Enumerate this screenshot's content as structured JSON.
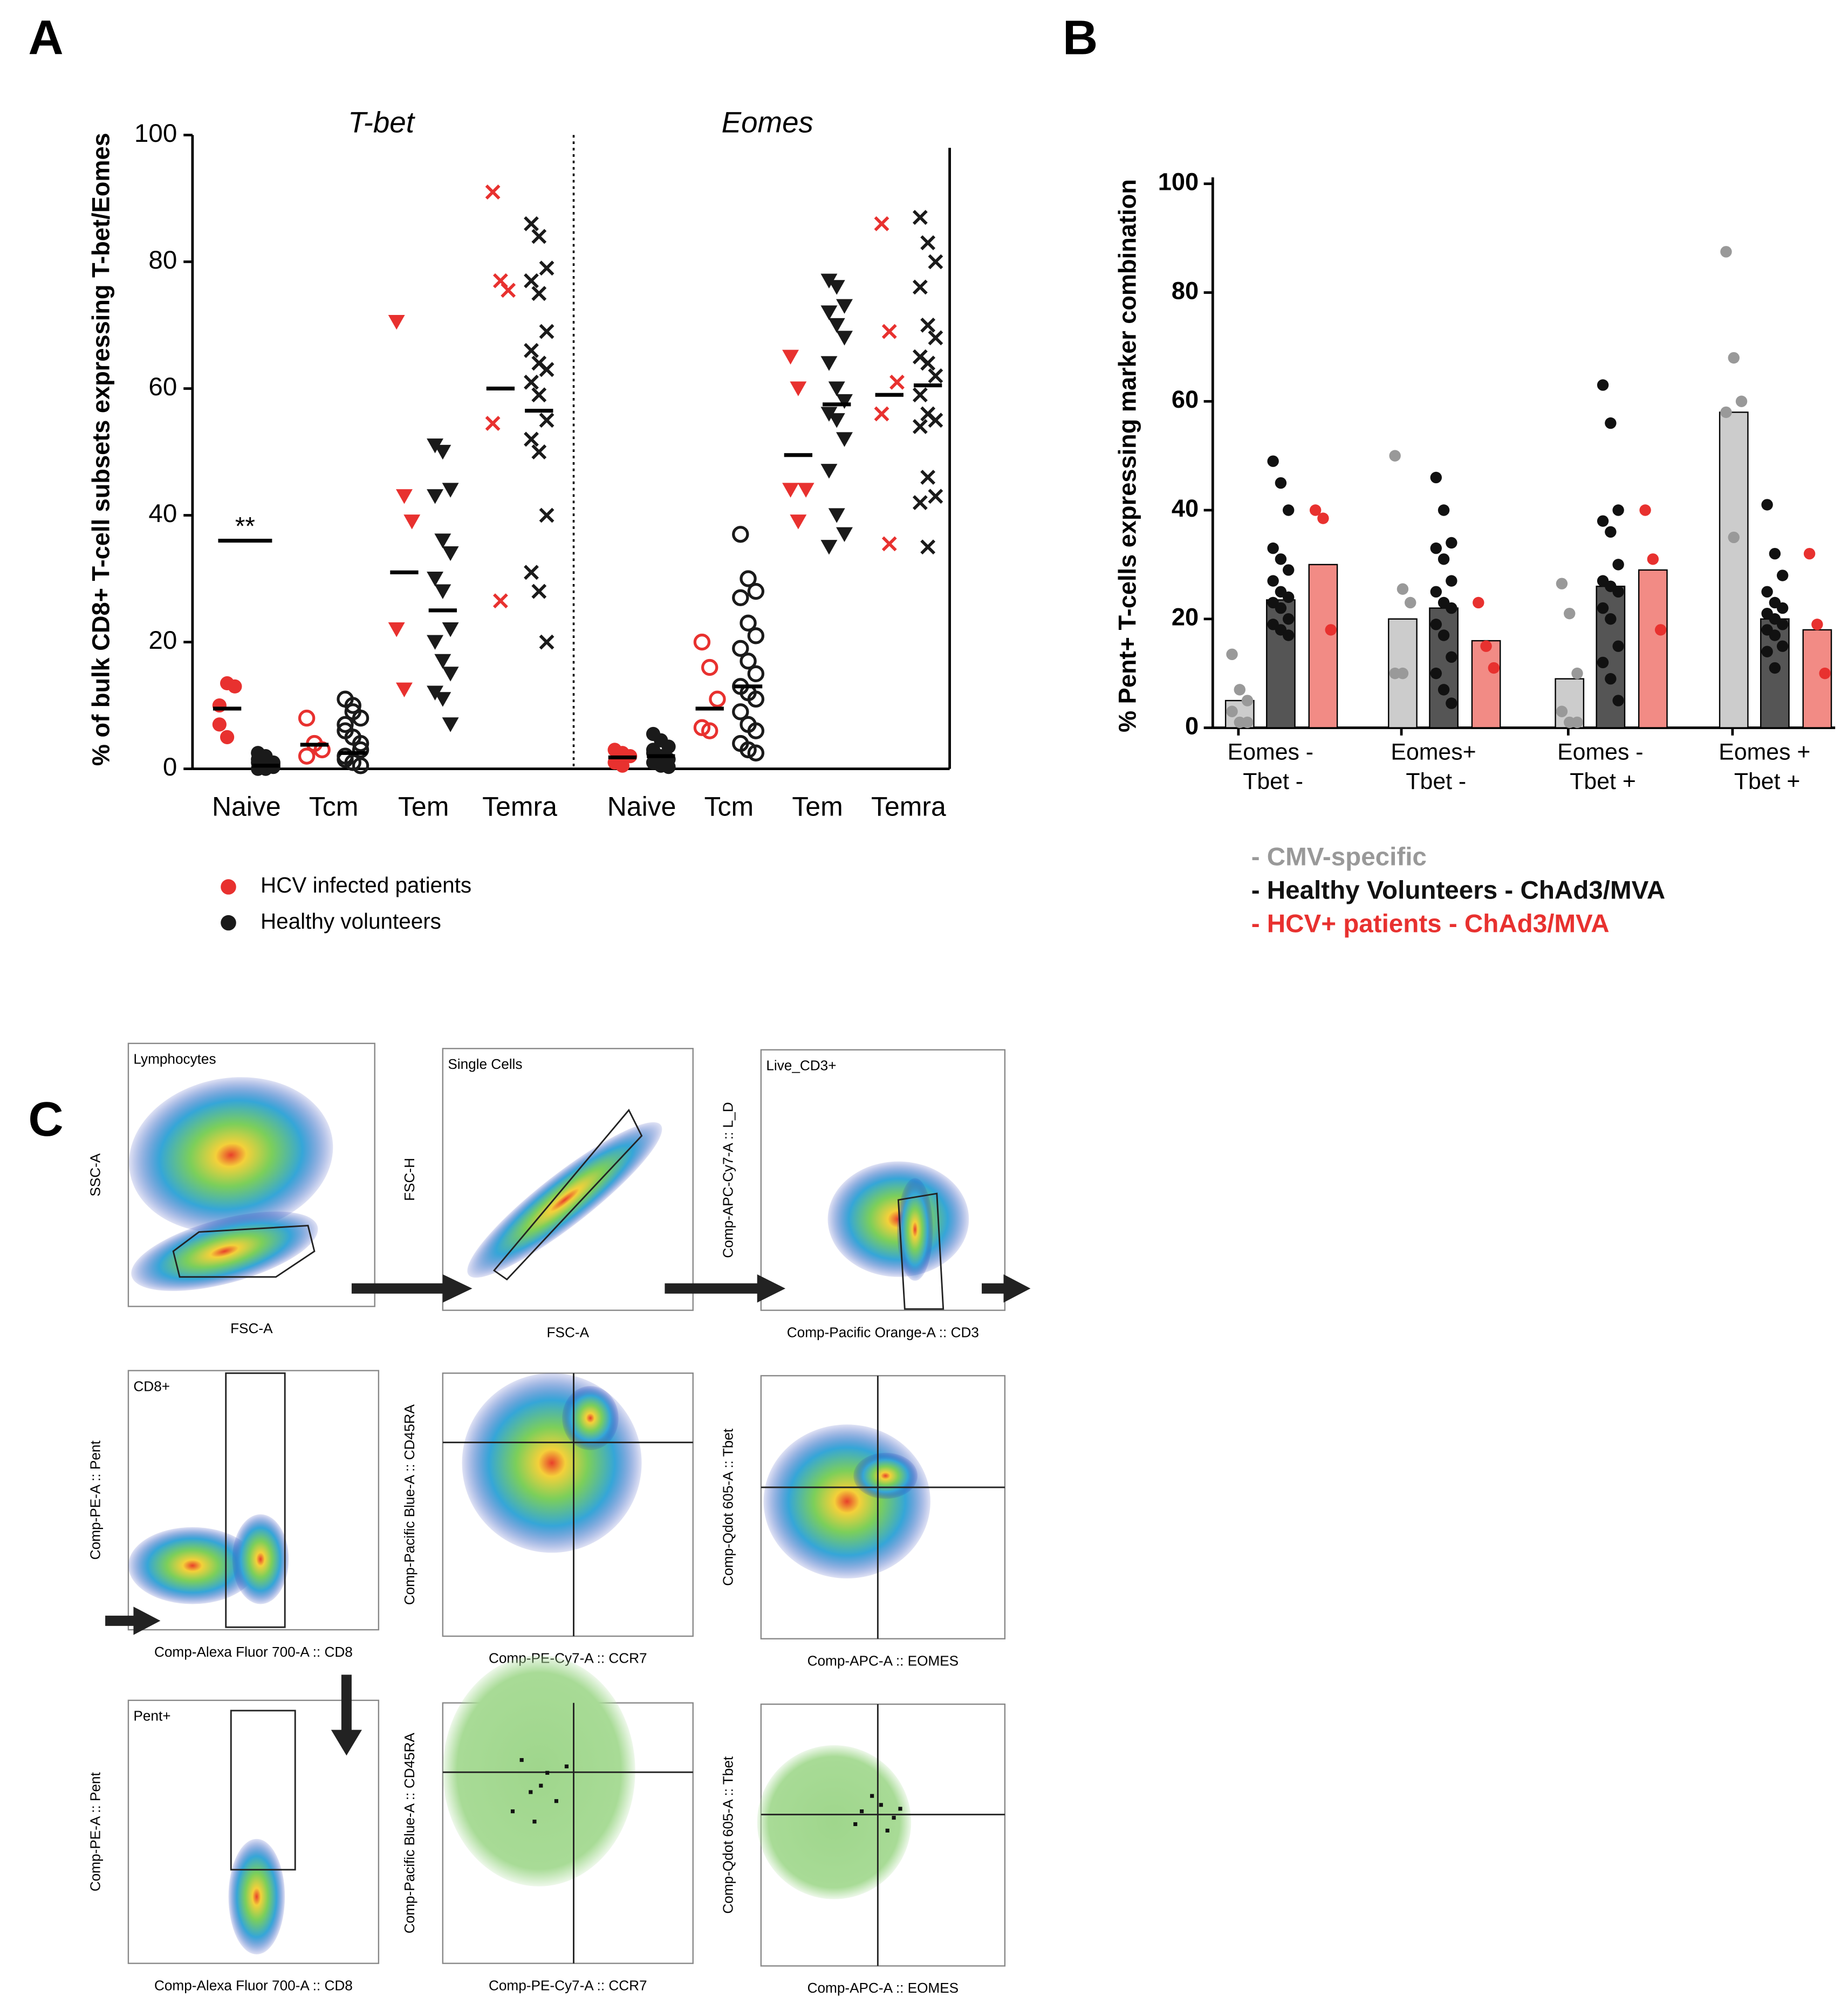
{
  "chart_data": [
    {
      "type": "dot",
      "panel": "A",
      "ylabel": "% of bulk CD8+ T-cell subsets expressing T-bet/Eomes",
      "ylim": [
        0,
        100
      ],
      "yticks": [
        0,
        20,
        40,
        60,
        80,
        100
      ],
      "facets": [
        "T-bet",
        "Eomes"
      ],
      "categories": [
        "Naive",
        "Tcm",
        "Tem",
        "Temra"
      ],
      "markers": [
        "dot",
        "ring",
        "triangle",
        "cross"
      ],
      "annotation": {
        "text": "**",
        "value": 36
      },
      "series": [
        {
          "name": "HCV infected patients",
          "color": "#e8312f",
          "values": [
            [
              [
                10,
                13.5,
                13,
                7,
                5
              ],
              [
                8,
                4,
                3,
                2
              ],
              [
                70.5,
                43,
                39,
                22,
                12.5
              ],
              [
                91,
                77,
                75.5,
                54.5,
                26.5
              ]
            ],
            [
              [
                3,
                2.5,
                2,
                1,
                0.5
              ],
              [
                20,
                16,
                11,
                6.5,
                6
              ],
              [
                65,
                60,
                44,
                44,
                39
              ],
              [
                86,
                69,
                61,
                56,
                35.5
              ]
            ]
          ],
          "medians": [
            [
              9.5,
              3.8,
              31,
              60
            ],
            [
              1.8,
              9.5,
              49.5,
              59
            ]
          ]
        },
        {
          "name": "Healthy volunteers",
          "color": "#1a1a1a",
          "values": [
            [
              [
                0,
                0.5,
                1,
                1.5,
                2,
                0.5,
                1,
                0,
                0.3,
                2.5,
                1,
                0.8
              ],
              [
                11,
                10,
                8,
                7,
                5,
                3,
                2,
                1,
                0.5,
                6,
                9,
                4,
                1.5
              ],
              [
                51,
                50,
                44,
                43,
                36,
                34,
                30,
                28,
                22,
                20,
                17,
                15,
                12,
                11,
                7
              ],
              [
                86,
                84,
                79,
                77,
                75,
                69,
                66,
                64,
                63,
                61,
                59,
                55,
                52,
                50,
                40,
                31,
                28,
                20
              ]
            ],
            [
              [
                5.5,
                4.5,
                3.5,
                3,
                2,
                1.5,
                1,
                0.5,
                0.3,
                2.5
              ],
              [
                37,
                30,
                28,
                27,
                23,
                21,
                19,
                17,
                15,
                13,
                12,
                11,
                9,
                7,
                6,
                4,
                3,
                2.5
              ],
              [
                77,
                76,
                73,
                72,
                70,
                68,
                64,
                60,
                58,
                56,
                55,
                52,
                47,
                40,
                37,
                35
              ],
              [
                87,
                83,
                80,
                76,
                70,
                68,
                65,
                64,
                62,
                59,
                56,
                55,
                54,
                46,
                43,
                42,
                35
              ]
            ]
          ],
          "medians": [
            [
              0.5,
              2.5,
              25,
              56.5
            ],
            [
              2,
              13,
              57.5,
              60.5
            ]
          ]
        }
      ]
    },
    {
      "type": "bar",
      "panel": "B",
      "ylabel": "% Pent+ T-cells expressing marker combination",
      "ylim": [
        0,
        100
      ],
      "yticks": [
        0,
        20,
        40,
        60,
        80,
        100
      ],
      "categories": [
        [
          "Eomes -",
          "Tbet -"
        ],
        [
          "Eomes+",
          "Tbet -"
        ],
        [
          "Eomes -",
          "Tbet +"
        ],
        [
          "Eomes +",
          "Tbet +"
        ]
      ],
      "series": [
        {
          "name": "- CMV-specific",
          "color": "#999999",
          "bar_color": "#cccccc",
          "values": [
            5,
            20,
            9,
            58
          ],
          "points": [
            [
              13.5,
              7,
              5,
              3,
              1,
              1
            ],
            [
              50,
              25.5,
              23,
              10,
              10
            ],
            [
              26.5,
              21,
              10,
              3,
              1,
              1
            ],
            [
              87.5,
              68,
              60,
              58,
              35
            ]
          ]
        },
        {
          "name": "- Healthy Volunteers - ChAd3/MVA",
          "color": "#111111",
          "bar_color": "#555555",
          "values": [
            23.5,
            22,
            26,
            20
          ],
          "points": [
            [
              49,
              45,
              40,
              33,
              31,
              29,
              27,
              25,
              24,
              23,
              22,
              20,
              19,
              18,
              17
            ],
            [
              46,
              40,
              34,
              33,
              31,
              27,
              25,
              23,
              22,
              19,
              17,
              13,
              10,
              7,
              4.5
            ],
            [
              63,
              56,
              40,
              38,
              36,
              30,
              27,
              26,
              25,
              22,
              20,
              15,
              12,
              9,
              5
            ],
            [
              41,
              32,
              28,
              25,
              23,
              22,
              21,
              20,
              19,
              18,
              17,
              15,
              14,
              11
            ]
          ]
        },
        {
          "name": "- HCV+ patients - ChAd3/MVA",
          "color": "#e8312f",
          "bar_color": "#f28b85",
          "values": [
            30,
            16,
            29,
            18
          ],
          "points": [
            [
              40,
              38.5,
              18
            ],
            [
              23,
              15,
              11
            ],
            [
              40,
              31,
              18
            ],
            [
              32,
              19,
              10
            ]
          ]
        }
      ]
    }
  ],
  "gating": {
    "panel": "C",
    "plots": [
      {
        "gate": "Lymphocytes",
        "xlabel": "FSC-A",
        "ylabel": "SSC-A"
      },
      {
        "gate": "Single Cells",
        "xlabel": "FSC-A",
        "ylabel": "FSC-H"
      },
      {
        "gate": "Live_CD3+",
        "xlabel": "Comp-Pacific Orange-A :: CD3",
        "ylabel": "Comp-APC-Cy7-A :: L_D"
      },
      {
        "gate": "CD8+",
        "xlabel": "Comp-Alexa Fluor 700-A :: CD8",
        "ylabel": "Comp-PE-A :: Pent"
      },
      {
        "xlabel": "Comp-PE-Cy7-A :: CCR7",
        "ylabel": "Comp-Pacific Blue-A :: CD45RA"
      },
      {
        "xlabel": "Comp-APC-A :: EOMES",
        "ylabel": "Comp-Qdot 605-A :: Tbet"
      },
      {
        "gate": "Pent+",
        "xlabel": "Comp-Alexa Fluor 700-A :: CD8",
        "ylabel": "Comp-PE-A :: Pent"
      },
      {
        "xlabel": "Comp-PE-Cy7-A :: CCR7",
        "ylabel": "Comp-Pacific Blue-A :: CD45RA"
      },
      {
        "xlabel": "Comp-APC-A :: EOMES",
        "ylabel": "Comp-Qdot 605-A :: Tbet"
      }
    ]
  }
}
